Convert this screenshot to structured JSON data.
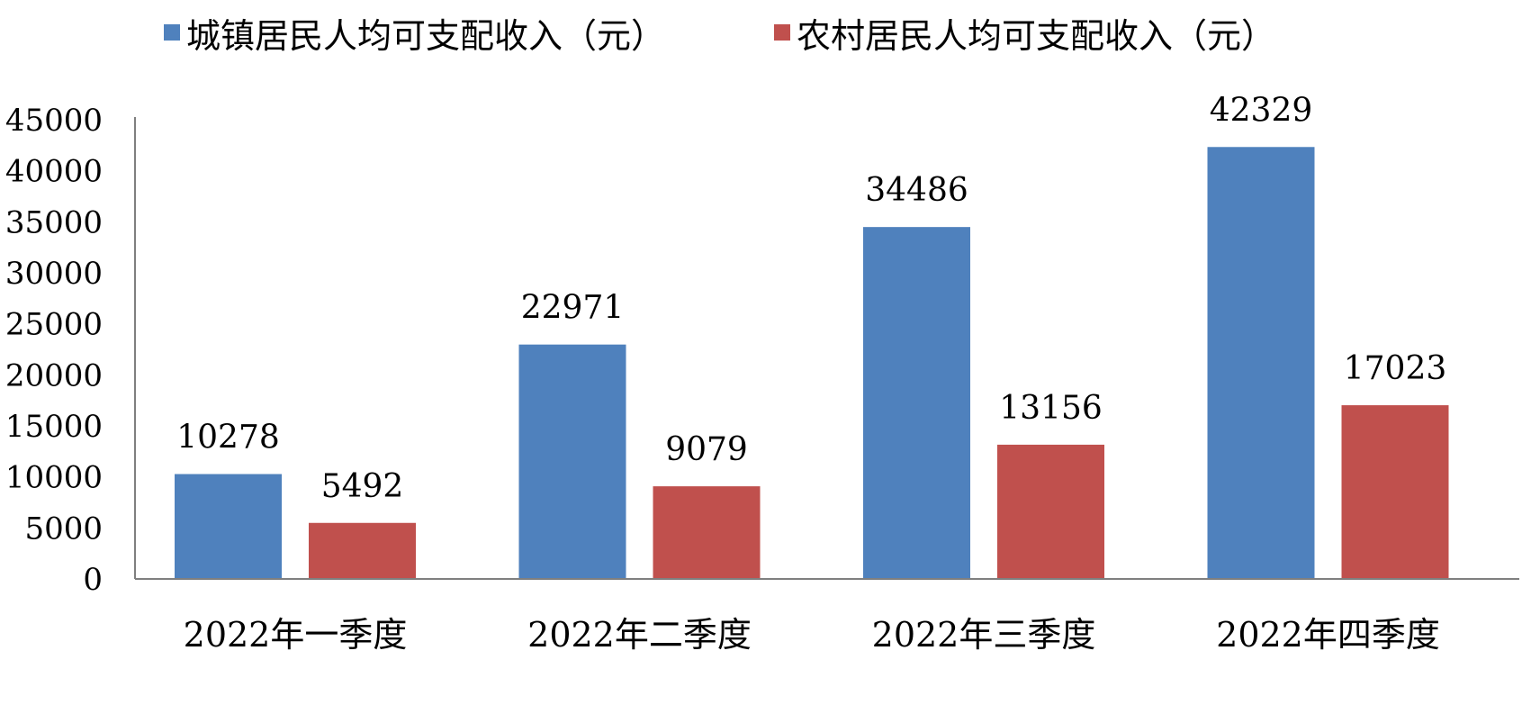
{
  "chart_data": {
    "type": "bar",
    "categories": [
      "2022年一季度",
      "2022年二季度",
      "2022年三季度",
      "2022年四季度"
    ],
    "series": [
      {
        "name": "城镇居民人均可支配收入（元）",
        "values": [
          10278,
          22971,
          34486,
          42329
        ],
        "color": "#4f81bd"
      },
      {
        "name": "农村居民人均可支配收入（元）",
        "values": [
          5492,
          9079,
          13156,
          17023
        ],
        "color": "#c0504d"
      }
    ],
    "yticks": [
      0,
      5000,
      10000,
      15000,
      20000,
      25000,
      30000,
      35000,
      40000,
      45000
    ],
    "ylim": [
      0,
      45000
    ],
    "grid": false,
    "legend_position": "top",
    "data_labels": true,
    "axis_color": "#7f7f7f"
  }
}
